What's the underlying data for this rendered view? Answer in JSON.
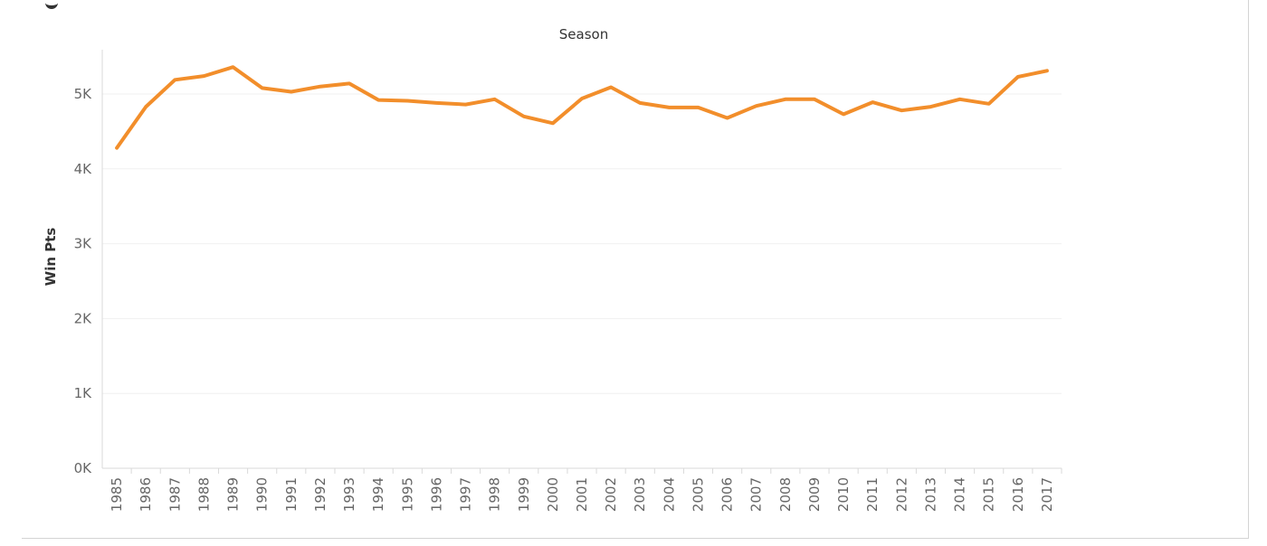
{
  "chart_data": {
    "type": "line",
    "title": "",
    "x_header": "Season",
    "xlabel": "",
    "ylabel": "Win Pts",
    "categories": [
      "1985",
      "1986",
      "1987",
      "1988",
      "1989",
      "1990",
      "1991",
      "1992",
      "1993",
      "1994",
      "1995",
      "1996",
      "1997",
      "1998",
      "1999",
      "2000",
      "2001",
      "2002",
      "2003",
      "2004",
      "2005",
      "2006",
      "2007",
      "2008",
      "2009",
      "2010",
      "2011",
      "2012",
      "2013",
      "2014",
      "2015",
      "2016",
      "2017"
    ],
    "series": [
      {
        "values": [
          4280,
          4830,
          5190,
          5240,
          5360,
          5080,
          5030,
          5100,
          5140,
          4920,
          4910,
          4880,
          4860,
          4930,
          4700,
          4610,
          4940,
          5090,
          4880,
          4820,
          4820,
          4680,
          4840,
          4930,
          4930,
          4730,
          4890,
          4780,
          4830,
          4930,
          4870,
          5230,
          5310
        ]
      }
    ],
    "ylim": [
      0,
      5600
    ],
    "yticks": [
      0,
      1000,
      2000,
      3000,
      4000,
      5000
    ],
    "ytick_labels": [
      "0K",
      "1K",
      "2K",
      "3K",
      "4K",
      "5K"
    ],
    "grid": true,
    "line_color": "#f28e2b",
    "grid_color": "#f0f0f0",
    "axis_color": "#d9d9d9"
  }
}
